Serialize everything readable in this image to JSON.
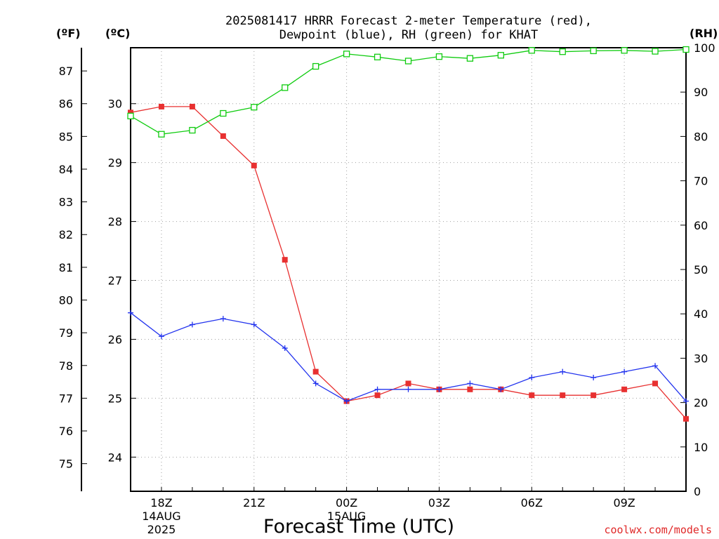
{
  "chart_data": {
    "type": "line",
    "title_line1": "2025081417 HRRR Forecast 2-meter Temperature (red),",
    "title_line2": "Dewpoint (blue), RH (green) for KHAT",
    "xlabel": "Forecast Time (UTC)",
    "credit": "coolwx.com/models",
    "axis_headers": {
      "fahrenheit": "(ºF)",
      "celsius": "(ºC)",
      "rh": "(RH)"
    },
    "fahrenheit_ticks": [
      75,
      76,
      77,
      78,
      79,
      80,
      81,
      82,
      83,
      84,
      85,
      86,
      87
    ],
    "celsius_ticks": [
      24,
      25,
      26,
      27,
      28,
      29,
      30
    ],
    "rh_ticks": [
      0,
      10,
      20,
      30,
      40,
      50,
      60,
      70,
      80,
      90,
      100
    ],
    "celsius_range": [
      23.42,
      30.95
    ],
    "rh_range": [
      0,
      100
    ],
    "x_hours": [
      17,
      18,
      19,
      20,
      21,
      22,
      23,
      24,
      25,
      26,
      27,
      28,
      29,
      30,
      31,
      32,
      33,
      34,
      35
    ],
    "x_ticks": [
      {
        "hour": 18,
        "lines": [
          "18Z",
          "14AUG",
          "2025"
        ]
      },
      {
        "hour": 21,
        "lines": [
          "21Z"
        ]
      },
      {
        "hour": 24,
        "lines": [
          "00Z",
          "15AUG"
        ]
      },
      {
        "hour": 27,
        "lines": [
          "03Z"
        ]
      },
      {
        "hour": 30,
        "lines": [
          "06Z"
        ]
      },
      {
        "hour": 33,
        "lines": [
          "09Z"
        ]
      }
    ],
    "series": [
      {
        "name": "Temperature",
        "unit": "C",
        "color": "#e83030",
        "marker": "filled-square",
        "values": [
          29.85,
          29.95,
          29.95,
          29.45,
          28.95,
          27.35,
          25.45,
          24.95,
          25.05,
          25.25,
          25.15,
          25.15,
          25.15,
          25.05,
          25.05,
          25.05,
          25.15,
          25.25,
          24.65
        ]
      },
      {
        "name": "Dewpoint",
        "unit": "C",
        "color": "#2233ee",
        "marker": "plus",
        "values": [
          26.45,
          26.05,
          26.25,
          26.35,
          26.25,
          25.85,
          25.25,
          24.95,
          25.15,
          25.15,
          25.15,
          25.25,
          25.15,
          25.35,
          25.45,
          25.35,
          25.45,
          25.55,
          24.95
        ]
      },
      {
        "name": "RH",
        "unit": "%",
        "color": "#10cc10",
        "marker": "open-square",
        "values": [
          84.6,
          80.5,
          81.4,
          85.2,
          86.6,
          91.0,
          95.8,
          98.6,
          97.9,
          97.0,
          98.0,
          97.6,
          98.3,
          99.4,
          99.1,
          99.3,
          99.4,
          99.2,
          99.6
        ]
      }
    ]
  }
}
